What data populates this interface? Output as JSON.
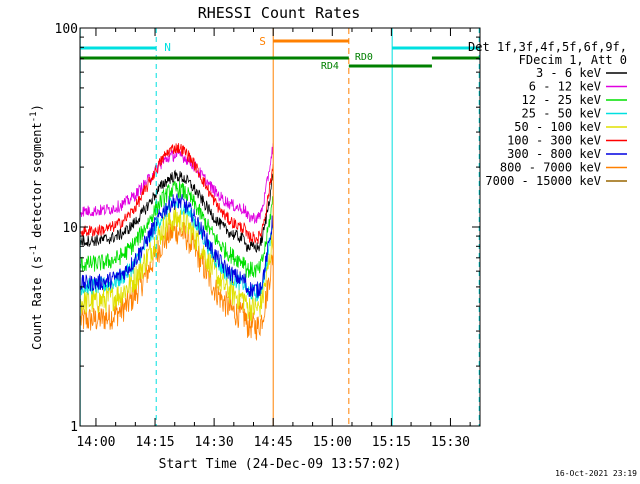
{
  "chart_data": {
    "type": "line",
    "title": "RHESSI Count Rates",
    "xlabel": "Start Time (24-Dec-09 13:57:02)",
    "ylabel": "Count Rate (s",
    "ylabel_sup1": "-1",
    "ylabel_mid": " detector segment",
    "ylabel_sup2": "-1",
    "ylabel_end": ")",
    "y_scale": "log",
    "ylim": [
      1,
      100
    ],
    "xlim_minutes": [
      -4.05,
      97.5
    ],
    "x_ticks": [
      {
        "label": "14:00",
        "minutes": 0
      },
      {
        "label": "14:15",
        "minutes": 15
      },
      {
        "label": "14:30",
        "minutes": 30
      },
      {
        "label": "14:45",
        "minutes": 45
      },
      {
        "label": "15:00",
        "minutes": 60
      },
      {
        "label": "15:15",
        "minutes": 75
      },
      {
        "label": "15:30",
        "minutes": 90
      }
    ],
    "y_tick_labels": [
      {
        "label": "1",
        "value": 1
      },
      {
        "label": "10",
        "value": 10
      },
      {
        "label": "100",
        "value": 100
      }
    ],
    "legend_header": [
      "Det 1f,3f,4f,5f,6f,9f,",
      "FDecim 1, Att 0"
    ],
    "timestamp": "16-Oct-2021 23:19",
    "data_gap_minutes": [
      45.0,
      64.2
    ],
    "series": [
      {
        "name": "3 - 6 keV",
        "color": "#000000",
        "base": 8.5,
        "peak": 18,
        "end": 8.5
      },
      {
        "name": "6 - 12 keV",
        "color": "#e000e0",
        "base": 12,
        "peak": 23,
        "end": 12
      },
      {
        "name": "12 - 25 keV",
        "color": "#00e000",
        "base": 6.5,
        "peak": 15.5,
        "end": 6
      },
      {
        "name": "25 - 50 keV",
        "color": "#00e0e0",
        "base": 5,
        "peak": 13,
        "end": 4.8
      },
      {
        "name": "50 - 100 keV",
        "color": "#e0e000",
        "base": 4.2,
        "peak": 11,
        "end": 4.0
      },
      {
        "name": "100 - 300 keV",
        "color": "#ff0000",
        "base": 9.5,
        "peak": 25,
        "end": 9
      },
      {
        "name": "300 - 800 keV",
        "color": "#0000e0",
        "base": 5.2,
        "peak": 13.5,
        "end": 5
      },
      {
        "name": "800 - 7000 keV",
        "color": "#ff8000",
        "base": 3.4,
        "peak": 9.5,
        "end": 3.3
      },
      {
        "name": "7000 - 15000 keV",
        "color": "#996600",
        "base": 0,
        "peak": 0,
        "end": 0
      }
    ],
    "annotations": [
      {
        "text": "N",
        "color": "#00e0e0",
        "kind": "night"
      },
      {
        "text": "S",
        "color": "#ff8000",
        "kind": "saa"
      },
      {
        "text": "RD0",
        "color": "#008000",
        "kind": "decimation"
      },
      {
        "text": "RD4",
        "color": "#008000",
        "kind": "decimation"
      }
    ],
    "night_intervals_minutes": [
      [
        -4.0,
        15.3
      ],
      [
        75.2,
        97.3
      ]
    ],
    "saa_interval_minutes": [
      45.0,
      64.2
    ],
    "decimation_segments_minutes": [
      {
        "label": "RD0",
        "start": -4.0,
        "end": 64.2
      },
      {
        "label": "RD4",
        "start": 64.2,
        "end": 85.3
      },
      {
        "label": "RD0",
        "start": 85.3,
        "end": 97.3
      }
    ]
  }
}
